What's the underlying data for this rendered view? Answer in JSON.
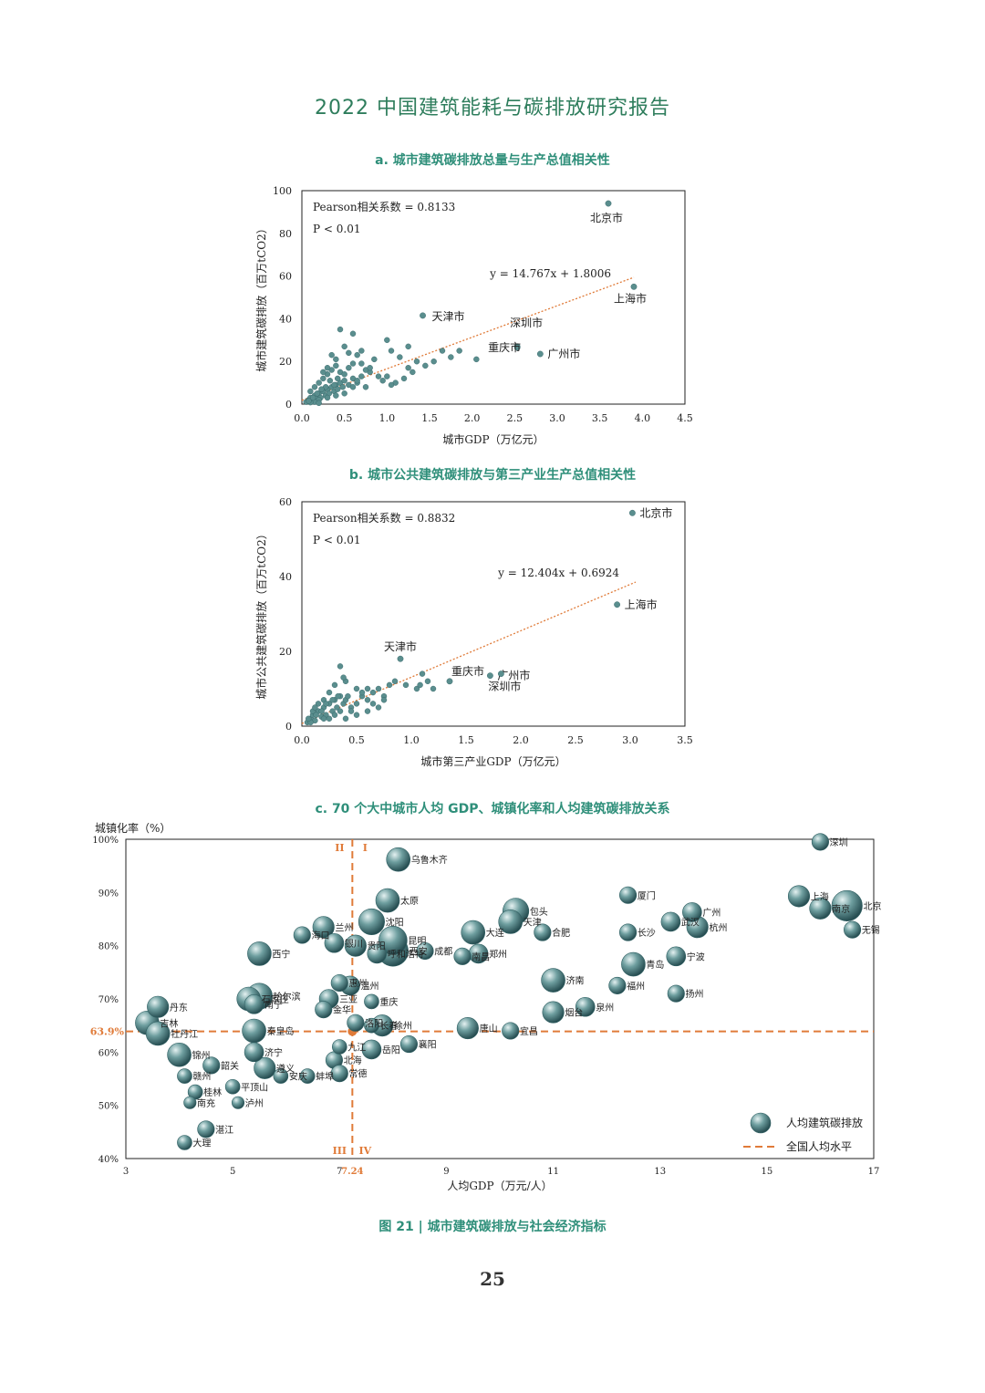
{
  "report_title": "2022 中国建筑能耗与碳排放研究报告",
  "figure_caption": "图 21 |  城市建筑碳排放与社会经济指标",
  "page_number": "25",
  "colors": {
    "point": "#5a8e8e",
    "point_dark": "#2f5f62",
    "trend": "#e07b39",
    "title": "#2f8f7a",
    "header": "#2e7d5c"
  },
  "chart_data": [
    {
      "id": "a",
      "type": "scatter",
      "title": "a. 城市建筑碳排放总量与生产总值相关性",
      "xlabel": "城市GDP（万亿元）",
      "ylabel": "城市建筑碳排放（百万tCO2）",
      "xlim": [
        0,
        4.5
      ],
      "ylim": [
        0,
        100
      ],
      "xticks": [
        "0.0",
        "0.5",
        "1.0",
        "1.5",
        "2.0",
        "2.5",
        "3.0",
        "3.5",
        "4.0",
        "4.5"
      ],
      "yticks": [
        "0",
        "20",
        "40",
        "60",
        "80",
        "100"
      ],
      "pearson": "Pearson相关系数 = 0.8133",
      "pvalue": "P < 0.01",
      "equation": "y = 14.767x + 1.8006",
      "trend": {
        "slope": 14.767,
        "intercept": 1.8006,
        "x_end": 3.9
      },
      "labeled_points": [
        {
          "name": "北京市",
          "x": 3.6,
          "y": 94
        },
        {
          "name": "上海市",
          "x": 3.9,
          "y": 55
        },
        {
          "name": "天津市",
          "x": 1.42,
          "y": 41.5
        },
        {
          "name": "深圳市",
          "x": 2.53,
          "y": 27
        },
        {
          "name": "重庆市",
          "x": 2.53,
          "y": 26.5
        },
        {
          "name": "广州市",
          "x": 2.8,
          "y": 23.5
        }
      ],
      "points": [
        [
          0.05,
          1
        ],
        [
          0.08,
          2
        ],
        [
          0.1,
          3
        ],
        [
          0.12,
          1.5
        ],
        [
          0.15,
          4
        ],
        [
          0.18,
          2.5
        ],
        [
          0.2,
          5
        ],
        [
          0.22,
          3
        ],
        [
          0.25,
          6
        ],
        [
          0.28,
          4
        ],
        [
          0.3,
          7
        ],
        [
          0.32,
          5
        ],
        [
          0.35,
          8
        ],
        [
          0.38,
          6
        ],
        [
          0.4,
          9
        ],
        [
          0.42,
          7
        ],
        [
          0.45,
          10
        ],
        [
          0.48,
          8
        ],
        [
          0.5,
          11
        ],
        [
          0.55,
          9
        ],
        [
          0.6,
          12
        ],
        [
          0.65,
          10
        ],
        [
          0.7,
          13
        ],
        [
          0.75,
          8
        ],
        [
          0.8,
          15
        ],
        [
          0.1,
          6
        ],
        [
          0.15,
          8
        ],
        [
          0.2,
          10
        ],
        [
          0.25,
          12
        ],
        [
          0.3,
          14
        ],
        [
          0.35,
          16
        ],
        [
          0.4,
          18
        ],
        [
          0.2,
          2
        ],
        [
          0.3,
          3
        ],
        [
          0.4,
          4
        ],
        [
          0.5,
          5
        ],
        [
          0.45,
          35
        ],
        [
          0.6,
          33
        ],
        [
          0.5,
          27
        ],
        [
          0.4,
          21
        ],
        [
          0.55,
          24
        ],
        [
          0.65,
          23
        ],
        [
          0.7,
          25
        ],
        [
          0.35,
          23
        ],
        [
          0.3,
          17
        ],
        [
          0.25,
          15
        ],
        [
          0.45,
          15
        ],
        [
          0.55,
          17
        ],
        [
          0.6,
          19
        ],
        [
          0.7,
          19
        ],
        [
          0.75,
          16
        ],
        [
          0.8,
          17
        ],
        [
          0.85,
          21
        ],
        [
          1.0,
          30
        ],
        [
          1.05,
          25
        ],
        [
          1.15,
          22
        ],
        [
          1.25,
          27
        ],
        [
          1.0,
          13
        ],
        [
          1.1,
          10
        ],
        [
          1.2,
          12
        ],
        [
          1.3,
          15
        ],
        [
          1.35,
          20
        ],
        [
          1.45,
          18
        ],
        [
          1.55,
          20
        ],
        [
          1.65,
          25
        ],
        [
          1.75,
          22
        ],
        [
          1.85,
          25
        ],
        [
          2.05,
          21
        ],
        [
          1.05,
          9
        ],
        [
          1.25,
          17
        ],
        [
          0.9,
          13
        ],
        [
          0.95,
          11
        ],
        [
          0.15,
          1
        ],
        [
          0.2,
          0.5
        ],
        [
          0.1,
          0.8
        ],
        [
          0.6,
          8
        ],
        [
          0.65,
          11
        ],
        [
          0.5,
          14
        ],
        [
          0.42,
          12
        ],
        [
          0.38,
          9
        ],
        [
          0.33,
          11
        ],
        [
          0.28,
          8
        ],
        [
          0.23,
          7
        ],
        [
          0.18,
          5
        ],
        [
          0.13,
          3
        ],
        [
          0.08,
          1.5
        ]
      ]
    },
    {
      "id": "b",
      "type": "scatter",
      "title": "b. 城市公共建筑碳排放与第三产业生产总值相关性",
      "xlabel": "城市第三产业GDP（万亿元）",
      "ylabel": "城市公共建筑碳排放（百万tCO2）",
      "xlim": [
        0,
        3.5
      ],
      "ylim": [
        0,
        60
      ],
      "xticks": [
        "0.0",
        "0.5",
        "1.0",
        "1.5",
        "2.0",
        "2.5",
        "3.0",
        "3.5"
      ],
      "yticks": [
        "0",
        "20",
        "40",
        "60"
      ],
      "pearson": "Pearson相关系数 = 0.8832",
      "pvalue": "P < 0.01",
      "equation": "y = 12.404x + 0.6924",
      "trend": {
        "slope": 12.404,
        "intercept": 0.6924,
        "x_end": 3.05
      },
      "labeled_points": [
        {
          "name": "北京市",
          "x": 3.02,
          "y": 57
        },
        {
          "name": "上海市",
          "x": 2.88,
          "y": 32.5
        },
        {
          "name": "天津市",
          "x": 0.9,
          "y": 18
        },
        {
          "name": "重庆市",
          "x": 1.35,
          "y": 12
        },
        {
          "name": "广州市",
          "x": 1.72,
          "y": 13.5
        },
        {
          "name": "深圳市",
          "x": 1.82,
          "y": 14
        }
      ],
      "points": [
        [
          0.05,
          1
        ],
        [
          0.08,
          2
        ],
        [
          0.1,
          3
        ],
        [
          0.12,
          1.5
        ],
        [
          0.15,
          4
        ],
        [
          0.18,
          2.5
        ],
        [
          0.2,
          5
        ],
        [
          0.22,
          3
        ],
        [
          0.25,
          6
        ],
        [
          0.28,
          4
        ],
        [
          0.3,
          7
        ],
        [
          0.32,
          5
        ],
        [
          0.35,
          8
        ],
        [
          0.38,
          6
        ],
        [
          0.4,
          7
        ],
        [
          0.45,
          5
        ],
        [
          0.5,
          6
        ],
        [
          0.55,
          8
        ],
        [
          0.6,
          7
        ],
        [
          0.65,
          9
        ],
        [
          0.7,
          10
        ],
        [
          0.75,
          8
        ],
        [
          0.8,
          11
        ],
        [
          0.35,
          16
        ],
        [
          0.4,
          12
        ],
        [
          0.38,
          13
        ],
        [
          0.3,
          11
        ],
        [
          0.25,
          9
        ],
        [
          0.2,
          7
        ],
        [
          0.15,
          6
        ],
        [
          0.1,
          4
        ],
        [
          0.5,
          3
        ],
        [
          0.45,
          4
        ],
        [
          0.4,
          2
        ],
        [
          0.6,
          4
        ],
        [
          0.65,
          6
        ],
        [
          0.7,
          5
        ],
        [
          0.75,
          7
        ],
        [
          0.85,
          12
        ],
        [
          0.95,
          11
        ],
        [
          1.05,
          10
        ],
        [
          1.08,
          11
        ],
        [
          1.1,
          14
        ],
        [
          1.15,
          12
        ],
        [
          1.2,
          10
        ],
        [
          0.6,
          10
        ],
        [
          0.55,
          9
        ],
        [
          0.5,
          10
        ],
        [
          0.42,
          8
        ],
        [
          0.33,
          8
        ],
        [
          0.28,
          7
        ],
        [
          0.22,
          6
        ],
        [
          0.18,
          4
        ],
        [
          0.13,
          3
        ],
        [
          0.08,
          1
        ],
        [
          0.06,
          2
        ],
        [
          0.12,
          5
        ],
        [
          0.2,
          2
        ],
        [
          0.3,
          3
        ],
        [
          0.25,
          2
        ],
        [
          0.35,
          4
        ]
      ]
    },
    {
      "id": "c",
      "type": "bubble",
      "title": "c. 70 个大中城市人均 GDP、城镇化率和人均建筑碳排放关系",
      "xlabel": "人均GDP（万元/人）",
      "ylabel": "城镇化率（%）",
      "xlim": [
        3,
        17
      ],
      "ylim": [
        40,
        100
      ],
      "xticks": [
        "3",
        "5",
        "7",
        "9",
        "11",
        "13",
        "15",
        "17"
      ],
      "yticks": [
        "40%",
        "50%",
        "60%",
        "70%",
        "80%",
        "90%",
        "100%"
      ],
      "national_x": 7.24,
      "national_y": 63.9,
      "national_x_label": "7.24",
      "national_y_label": "63.9%",
      "quadrants": [
        "I",
        "II",
        "III",
        "IV"
      ],
      "legend": [
        "人均建筑碳排放",
        "全国人均水平"
      ],
      "cities": [
        {
          "name": "深圳",
          "x": 16.0,
          "y": 99.5,
          "s": 5
        },
        {
          "name": "上海",
          "x": 15.6,
          "y": 89.3,
          "s": 7
        },
        {
          "name": "北京",
          "x": 16.5,
          "y": 87.5,
          "s": 11
        },
        {
          "name": "南京",
          "x": 16.0,
          "y": 87.0,
          "s": 7
        },
        {
          "name": "无锡",
          "x": 16.6,
          "y": 83.0,
          "s": 5
        },
        {
          "name": "乌鲁木齐",
          "x": 8.1,
          "y": 96.2,
          "s": 8
        },
        {
          "name": "厦门",
          "x": 12.4,
          "y": 89.5,
          "s": 5
        },
        {
          "name": "包头",
          "x": 10.3,
          "y": 86.5,
          "s": 9
        },
        {
          "name": "太原",
          "x": 7.9,
          "y": 88.5,
          "s": 8
        },
        {
          "name": "广州",
          "x": 13.6,
          "y": 86.3,
          "s": 6
        },
        {
          "name": "武汉",
          "x": 13.2,
          "y": 84.5,
          "s": 6
        },
        {
          "name": "杭州",
          "x": 13.7,
          "y": 83.5,
          "s": 7
        },
        {
          "name": "兰州",
          "x": 6.7,
          "y": 83.5,
          "s": 7
        },
        {
          "name": "沈阳",
          "x": 7.6,
          "y": 84.5,
          "s": 9
        },
        {
          "name": "天津",
          "x": 10.2,
          "y": 84.5,
          "s": 8
        },
        {
          "name": "海口",
          "x": 6.3,
          "y": 82.0,
          "s": 5
        },
        {
          "name": "大连",
          "x": 9.5,
          "y": 82.5,
          "s": 8
        },
        {
          "name": "合肥",
          "x": 10.8,
          "y": 82.5,
          "s": 5
        },
        {
          "name": "长沙",
          "x": 12.4,
          "y": 82.5,
          "s": 5
        },
        {
          "name": "昆明",
          "x": 8.0,
          "y": 81.0,
          "s": 10
        },
        {
          "name": "银川",
          "x": 6.9,
          "y": 80.5,
          "s": 6
        },
        {
          "name": "贵阳",
          "x": 7.3,
          "y": 80.0,
          "s": 7
        },
        {
          "name": "西安",
          "x": 8.0,
          "y": 79.0,
          "s": 11
        },
        {
          "name": "成都",
          "x": 8.6,
          "y": 79.0,
          "s": 5
        },
        {
          "name": "呼和浩特",
          "x": 7.7,
          "y": 78.5,
          "s": 6
        },
        {
          "name": "西宁",
          "x": 5.5,
          "y": 78.5,
          "s": 8
        },
        {
          "name": "郑州",
          "x": 9.6,
          "y": 78.5,
          "s": 6
        },
        {
          "name": "南昌",
          "x": 9.3,
          "y": 78.0,
          "s": 5
        },
        {
          "name": "宁波",
          "x": 13.3,
          "y": 78.0,
          "s": 6
        },
        {
          "name": "青岛",
          "x": 12.5,
          "y": 76.5,
          "s": 8
        },
        {
          "name": "济南",
          "x": 11.0,
          "y": 73.5,
          "s": 8
        },
        {
          "name": "福州",
          "x": 12.2,
          "y": 72.5,
          "s": 5
        },
        {
          "name": "惠州",
          "x": 7.0,
          "y": 73.0,
          "s": 5
        },
        {
          "name": "温州",
          "x": 7.2,
          "y": 72.5,
          "s": 6
        },
        {
          "name": "扬州",
          "x": 13.3,
          "y": 71.0,
          "s": 5
        },
        {
          "name": "哈尔滨",
          "x": 5.5,
          "y": 70.5,
          "s": 9
        },
        {
          "name": "石家庄",
          "x": 5.3,
          "y": 70.0,
          "s": 8
        },
        {
          "name": "三亚",
          "x": 6.8,
          "y": 70.0,
          "s": 6
        },
        {
          "name": "重庆",
          "x": 7.6,
          "y": 69.5,
          "s": 4
        },
        {
          "name": "丹东",
          "x": 3.6,
          "y": 68.5,
          "s": 7
        },
        {
          "name": "南宁",
          "x": 5.4,
          "y": 69.0,
          "s": 6
        },
        {
          "name": "泉州",
          "x": 11.6,
          "y": 68.5,
          "s": 6
        },
        {
          "name": "金华",
          "x": 6.7,
          "y": 68.0,
          "s": 5
        },
        {
          "name": "烟台",
          "x": 11.0,
          "y": 67.5,
          "s": 7
        },
        {
          "name": "吉林",
          "x": 3.4,
          "y": 65.5,
          "s": 8
        },
        {
          "name": "洛阳",
          "x": 7.3,
          "y": 65.5,
          "s": 5
        },
        {
          "name": "徐州",
          "x": 7.8,
          "y": 65.0,
          "s": 7
        },
        {
          "name": "唐山",
          "x": 9.4,
          "y": 64.5,
          "s": 7
        },
        {
          "name": "宜昌",
          "x": 10.2,
          "y": 64.0,
          "s": 5
        },
        {
          "name": "长春",
          "x": 7.6,
          "y": 65.0,
          "s": 4
        },
        {
          "name": "牡丹江",
          "x": 3.6,
          "y": 63.5,
          "s": 8
        },
        {
          "name": "秦皇岛",
          "x": 5.4,
          "y": 64.0,
          "s": 8
        },
        {
          "name": "襄阳",
          "x": 8.3,
          "y": 61.5,
          "s": 5
        },
        {
          "name": "九江",
          "x": 7.0,
          "y": 61.0,
          "s": 4
        },
        {
          "name": "济宁",
          "x": 5.4,
          "y": 60.0,
          "s": 6
        },
        {
          "name": "岳阳",
          "x": 7.6,
          "y": 60.5,
          "s": 6
        },
        {
          "name": "锦州",
          "x": 4.0,
          "y": 59.5,
          "s": 8
        },
        {
          "name": "北海",
          "x": 6.9,
          "y": 58.5,
          "s": 5
        },
        {
          "name": "遵义",
          "x": 5.6,
          "y": 57.0,
          "s": 7
        },
        {
          "name": "韶关",
          "x": 4.6,
          "y": 57.5,
          "s": 5
        },
        {
          "name": "常德",
          "x": 7.0,
          "y": 56.0,
          "s": 5
        },
        {
          "name": "安庆",
          "x": 5.9,
          "y": 55.5,
          "s": 4
        },
        {
          "name": "蚌埠",
          "x": 6.4,
          "y": 55.5,
          "s": 4
        },
        {
          "name": "赣州",
          "x": 4.1,
          "y": 55.5,
          "s": 4
        },
        {
          "name": "平顶山",
          "x": 5.0,
          "y": 53.5,
          "s": 4
        },
        {
          "name": "桂林",
          "x": 4.3,
          "y": 52.5,
          "s": 4
        },
        {
          "name": "南充",
          "x": 4.2,
          "y": 50.5,
          "s": 3
        },
        {
          "name": "泸州",
          "x": 5.1,
          "y": 50.5,
          "s": 3
        },
        {
          "name": "湛江",
          "x": 4.5,
          "y": 45.5,
          "s": 5
        },
        {
          "name": "大理",
          "x": 4.1,
          "y": 43.0,
          "s": 4
        }
      ]
    }
  ]
}
